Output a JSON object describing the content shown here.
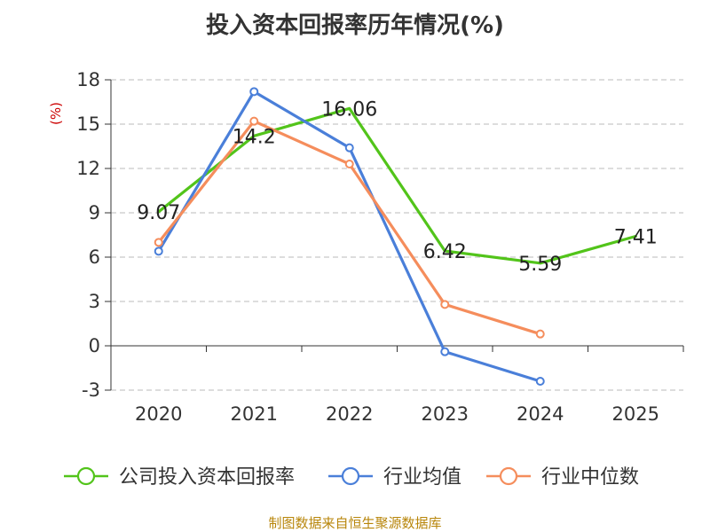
{
  "title": "投入资本回报率历年情况(%)",
  "source": "制图数据来自恒生聚源数据库",
  "chart_data": {
    "type": "line",
    "title": "投入资本回报率历年情况(%)",
    "ylabel": "(%)",
    "xlabel": "",
    "categories": [
      "2020",
      "2021",
      "2022",
      "2023",
      "2024",
      "2025"
    ],
    "ylim": [
      -3,
      18
    ],
    "yticks": [
      18,
      15,
      12,
      9,
      6,
      3,
      0,
      -3
    ],
    "grid": true,
    "legend_position": "bottom",
    "series": [
      {
        "name": "公司投入资本回报率",
        "color": "#52c41a",
        "values": [
          9.07,
          14.2,
          16.06,
          6.42,
          5.59,
          7.41
        ],
        "labels": [
          "9.07",
          "14.2",
          "16.06",
          "6.42",
          "5.59",
          "7.41"
        ],
        "markers": [
          false,
          false,
          false,
          false,
          false,
          false
        ]
      },
      {
        "name": "行业均值",
        "color": "#4a7fd9",
        "values": [
          6.4,
          17.2,
          13.4,
          -0.4,
          -2.4,
          null
        ],
        "markers": [
          true,
          true,
          true,
          true,
          true,
          false
        ]
      },
      {
        "name": "行业中位数",
        "color": "#f58d5c",
        "values": [
          7.0,
          15.2,
          12.3,
          2.8,
          0.8,
          null
        ],
        "markers": [
          true,
          true,
          true,
          true,
          true,
          false
        ]
      }
    ]
  }
}
